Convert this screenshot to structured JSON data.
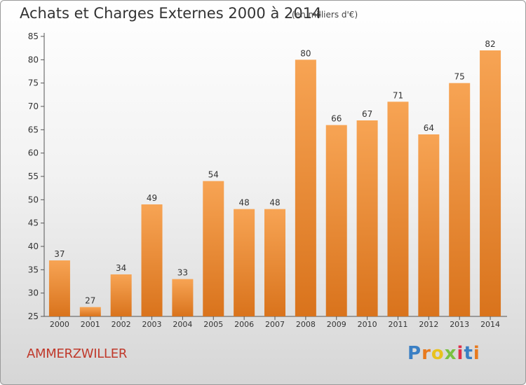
{
  "header": {
    "title": "Achats et Charges Externes 2000 à 2014",
    "subtitle": "(en milliers d'€)"
  },
  "footer": {
    "commune": "AMMERZWILLER",
    "logo_letters": [
      "P",
      "r",
      "o",
      "x",
      "i",
      "t",
      "i"
    ],
    "logo_colors": [
      "#3a7fc4",
      "#e87a1e",
      "#e8c21e",
      "#7ac142",
      "#e0314a",
      "#3a7fc4",
      "#e87a1e"
    ]
  },
  "chart_data": {
    "type": "bar",
    "title": "Achats et Charges Externes 2000 à 2014",
    "subtitle": "(en milliers d'€)",
    "xlabel": "",
    "ylabel": "",
    "categories": [
      "2000",
      "2001",
      "2002",
      "2003",
      "2004",
      "2005",
      "2006",
      "2007",
      "2008",
      "2009",
      "2010",
      "2011",
      "2012",
      "2013",
      "2014"
    ],
    "values": [
      37,
      27,
      34,
      49,
      33,
      54,
      48,
      48,
      80,
      66,
      67,
      71,
      64,
      75,
      82
    ],
    "ylim": [
      25,
      85
    ],
    "yticks": [
      25,
      30,
      35,
      40,
      45,
      50,
      55,
      60,
      65,
      70,
      75,
      80,
      85
    ],
    "grid": false,
    "colors": {
      "bar_light": "#f7a454",
      "bar_dark": "#d9731c",
      "axis": "#555555"
    }
  }
}
